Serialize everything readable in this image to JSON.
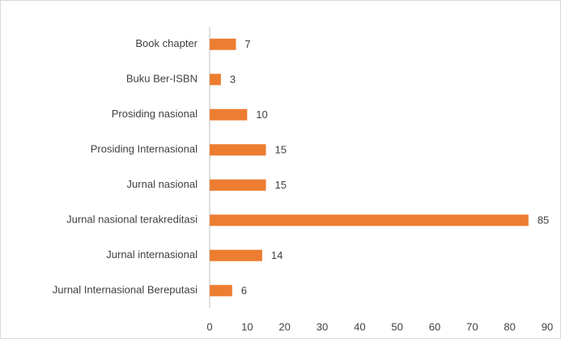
{
  "chart_data": {
    "type": "bar",
    "orientation": "horizontal",
    "categories": [
      "Book chapter",
      "Buku Ber-ISBN",
      "Prosiding nasional",
      "Prosiding Internasional",
      "Jurnal nasional",
      "Jurnal nasional terakreditasi",
      "Jurnal internasional",
      "Jurnal Internasional Bereputasi"
    ],
    "values": [
      7,
      3,
      10,
      15,
      15,
      85,
      14,
      6
    ],
    "color": "#ed7d31",
    "xlim": [
      0,
      90
    ],
    "xticks": [
      0,
      10,
      20,
      30,
      40,
      50,
      60,
      70,
      80,
      90
    ],
    "grid": false
  }
}
